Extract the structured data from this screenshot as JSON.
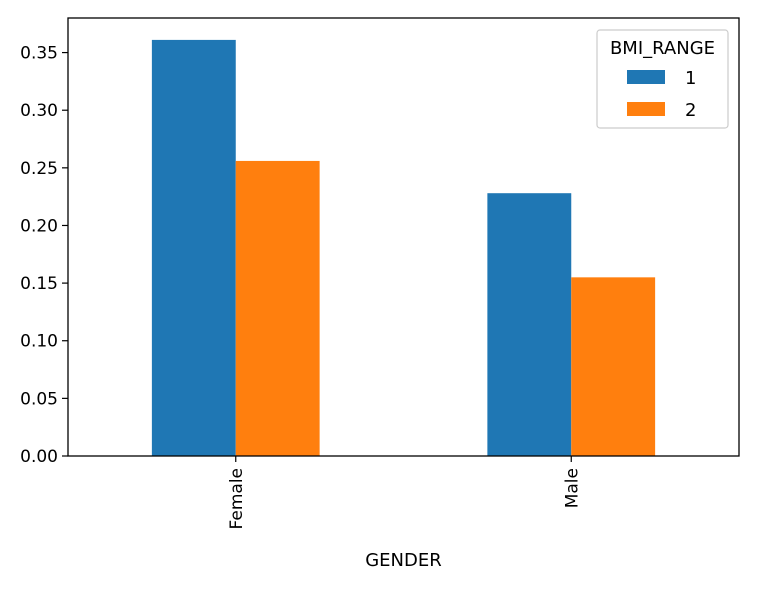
{
  "chart_data": {
    "type": "bar",
    "categories": [
      "Female",
      "Male"
    ],
    "series": [
      {
        "name": "1",
        "values": [
          0.361,
          0.228
        ],
        "color": "#1f77b4"
      },
      {
        "name": "2",
        "values": [
          0.256,
          0.155
        ],
        "color": "#ff7f0e"
      }
    ],
    "title": "",
    "xlabel": "GENDER",
    "ylabel": "",
    "ylim": [
      0,
      0.38
    ],
    "yticks": [
      "0.00",
      "0.05",
      "0.10",
      "0.15",
      "0.20",
      "0.25",
      "0.30",
      "0.35"
    ],
    "legend": {
      "title": "BMI_RANGE",
      "placement": "top-right"
    },
    "grid": false,
    "x_tick_rotation": "vertical"
  }
}
